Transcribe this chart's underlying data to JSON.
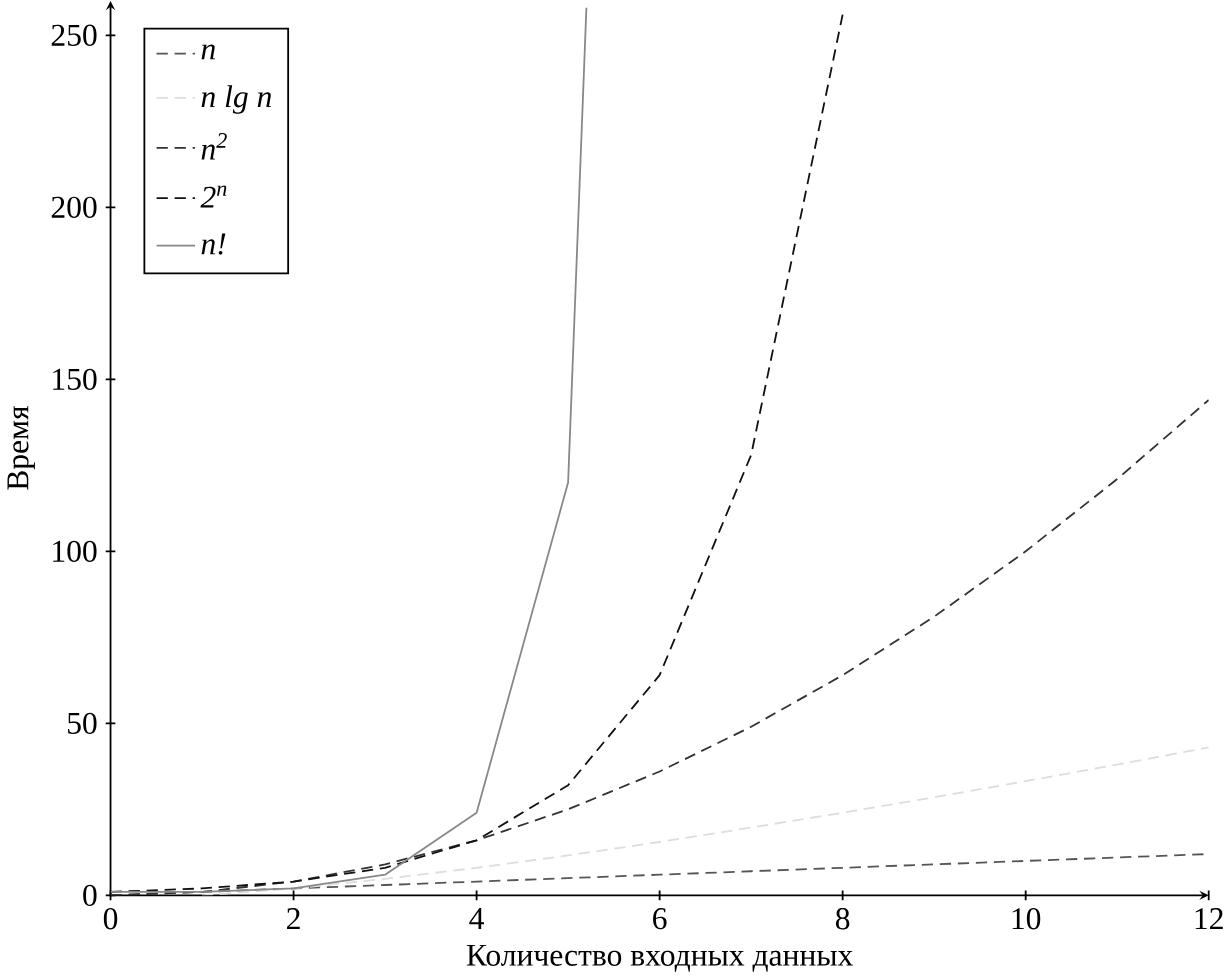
{
  "chart_data": {
    "type": "line",
    "xlabel": "Количество входных данных",
    "ylabel": "Время",
    "xlim": [
      0,
      12
    ],
    "ylim": [
      0,
      260
    ],
    "xticks": [
      0,
      2,
      4,
      6,
      8,
      10,
      12
    ],
    "yticks": [
      0,
      50,
      100,
      150,
      200,
      250
    ],
    "grid": false,
    "legend": "top left",
    "marker": "none",
    "series": [
      {
        "name": "n",
        "color": "#555555",
        "line_style": "dashed",
        "x": [
          0,
          1,
          2,
          3,
          4,
          5,
          6,
          7,
          8,
          9,
          10,
          11,
          12
        ],
        "values": [
          0,
          1,
          2,
          3,
          4,
          5,
          6,
          7,
          8,
          9,
          10,
          11,
          12
        ]
      },
      {
        "name": "n lg n",
        "color": "#dddddd",
        "line_style": "dashed",
        "x": [
          1,
          2,
          3,
          4,
          5,
          6,
          7,
          8,
          9,
          10,
          11,
          12
        ],
        "values": [
          0,
          2,
          4.8,
          8,
          11.6,
          15.5,
          19.7,
          24,
          28.5,
          33.2,
          38,
          43
        ]
      },
      {
        "name": "n$^{2}$",
        "color": "#333333",
        "line_style": "dashed",
        "x": [
          0,
          1,
          2,
          3,
          4,
          5,
          6,
          7,
          8,
          9,
          10,
          11,
          12
        ],
        "values": [
          0,
          1,
          4,
          9,
          16,
          25,
          36,
          49,
          64,
          81,
          100,
          121,
          144
        ]
      },
      {
        "name": "2$^{n}$",
        "color": "#111111",
        "line_style": "dashed",
        "x": [
          0,
          1,
          2,
          3,
          4,
          5,
          6,
          7,
          8
        ],
        "values": [
          1,
          2,
          4,
          8,
          16,
          32,
          64,
          128,
          256
        ]
      },
      {
        "name": "n!",
        "color": "#888888",
        "line_style": "solid",
        "x": [
          0,
          1,
          2,
          3,
          4,
          5,
          5.2
        ],
        "values": [
          1,
          1,
          2,
          6,
          24,
          120,
          258
        ]
      }
    ]
  }
}
